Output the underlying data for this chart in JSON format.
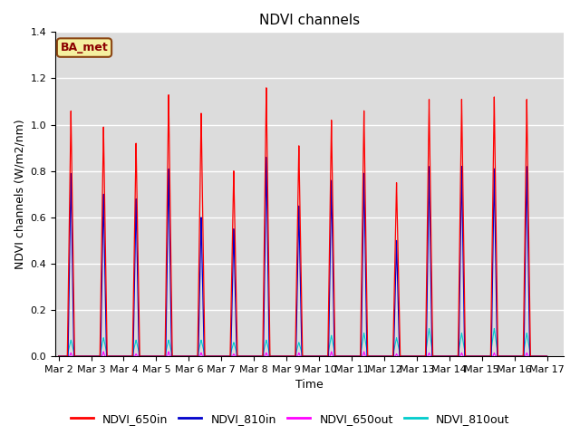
{
  "title": "NDVI channels",
  "ylabel": "NDVI channels (W/m2/nm)",
  "xlabel": "Time",
  "ylim": [
    0,
    1.4
  ],
  "yticks": [
    0.0,
    0.2,
    0.4,
    0.6,
    0.8,
    1.0,
    1.2,
    1.4
  ],
  "xtick_labels": [
    "Mar 2",
    "Mar 3",
    "Mar 4",
    "Mar 5",
    "Mar 6",
    "Mar 7",
    "Mar 8",
    "Mar 9",
    "Mar 10",
    "Mar 11",
    "Mar 12",
    "Mar 13",
    "Mar 14",
    "Mar 15",
    "Mar 16",
    "Mar 17"
  ],
  "plot_bg_light": "#dcdcdc",
  "plot_bg_dark": "#c8c8c8",
  "fig_bg": "#ffffff",
  "annotation_text": "BA_met",
  "annotation_bg": "#f5f0a0",
  "annotation_border": "#8B4513",
  "series_colors": {
    "NDVI_650in": "#ff0000",
    "NDVI_810in": "#0000cc",
    "NDVI_650out": "#ff00ff",
    "NDVI_810out": "#00cccc"
  },
  "day_peaks_650in": [
    1.06,
    0.99,
    0.92,
    1.13,
    1.05,
    0.8,
    1.16,
    0.91,
    1.02,
    1.06,
    0.75,
    1.11,
    1.11,
    1.12,
    1.11
  ],
  "day_peaks_810in": [
    0.79,
    0.7,
    0.68,
    0.81,
    0.6,
    0.55,
    0.86,
    0.65,
    0.76,
    0.79,
    0.5,
    0.82,
    0.82,
    0.81,
    0.82
  ],
  "day_peaks_650out": [
    0.015,
    0.02,
    0.01,
    0.02,
    0.015,
    0.01,
    0.015,
    0.015,
    0.02,
    0.02,
    0.01,
    0.015,
    0.015,
    0.015,
    0.015
  ],
  "day_peaks_810out": [
    0.07,
    0.08,
    0.07,
    0.07,
    0.07,
    0.06,
    0.07,
    0.06,
    0.09,
    0.1,
    0.08,
    0.12,
    0.1,
    0.12,
    0.1
  ],
  "title_fontsize": 11,
  "label_fontsize": 9,
  "tick_fontsize": 8,
  "legend_fontsize": 9
}
